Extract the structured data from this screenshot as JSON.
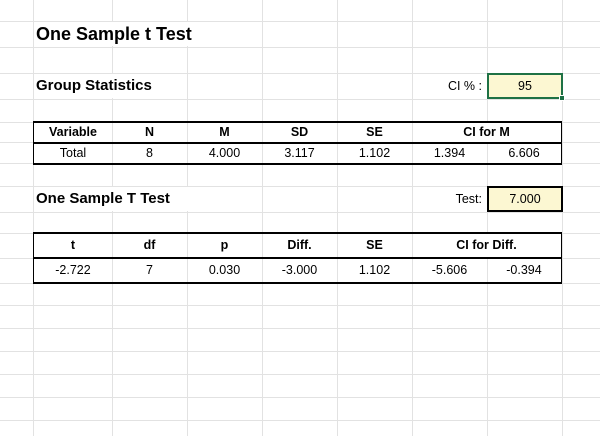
{
  "title": "One Sample t Test",
  "group_stats": {
    "heading": "Group Statistics",
    "ci_label": "CI % :",
    "ci_value": "95",
    "table": {
      "headers": [
        "Variable",
        "N",
        "M",
        "SD",
        "SE",
        "CI for M"
      ],
      "rows": [
        [
          "Total",
          "8",
          "4.000",
          "3.117",
          "1.102",
          "1.394",
          "6.606"
        ]
      ]
    }
  },
  "t_test": {
    "heading": "One Sample T Test",
    "test_label": "Test:",
    "test_value": "7.000",
    "table": {
      "headers": [
        "t",
        "df",
        "p",
        "Diff.",
        "SE",
        "CI for Diff."
      ],
      "rows": [
        [
          "-2.722",
          "7",
          "0.030",
          "-3.000",
          "1.102",
          "-5.606",
          "-0.394"
        ]
      ]
    }
  },
  "colors": {
    "input_fill": "#FCF7D2",
    "selection_border": "#1E7145",
    "gridline": "#E2E2E2",
    "table_border": "#000000"
  }
}
